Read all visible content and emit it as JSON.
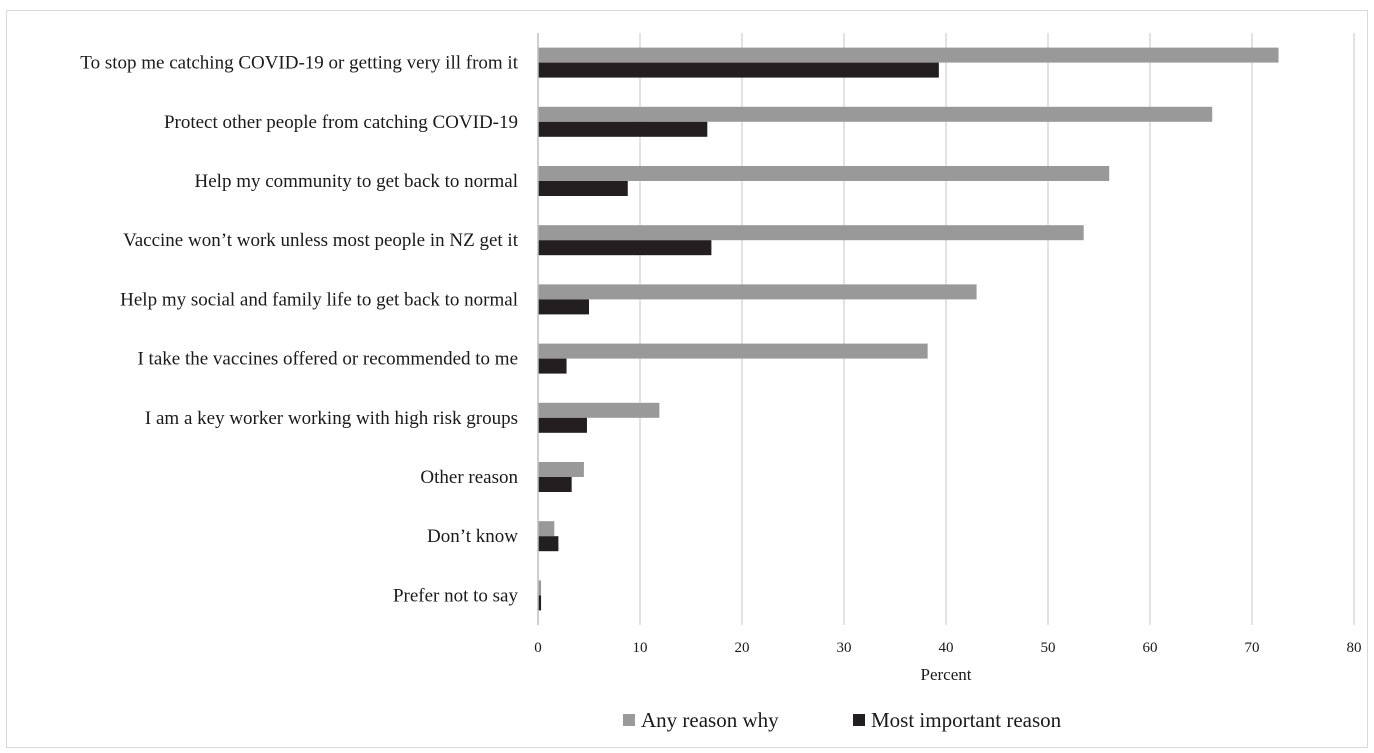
{
  "chart_data": {
    "type": "bar",
    "orientation": "horizontal",
    "categories": [
      "To stop me catching COVID-19 or getting very ill from it",
      "Protect other people from catching COVID-19",
      "Help my community to get back to normal",
      "Vaccine won’t work unless most people in NZ get it",
      "Help my social and family life to get back to normal",
      "I take the vaccines offered or recommended to me",
      "I am a key worker working with high risk groups",
      "Other reason",
      "Don’t know",
      "Prefer not to say"
    ],
    "series": [
      {
        "name": "Any reason why",
        "color": "#999999",
        "values": [
          72.6,
          66.1,
          56.0,
          53.5,
          43.0,
          38.2,
          11.9,
          4.5,
          1.6,
          0.3
        ]
      },
      {
        "name": "Most important reason",
        "color": "#231f20",
        "values": [
          39.3,
          16.6,
          8.8,
          17.0,
          5.0,
          2.8,
          4.8,
          3.3,
          2.0,
          0.3
        ]
      }
    ],
    "xlabel": "Percent",
    "ylabel": "",
    "xlim": [
      0,
      80
    ],
    "xticks": [
      "0",
      "10",
      "20",
      "30",
      "40",
      "50",
      "60",
      "70",
      "80"
    ],
    "grid": "vertical",
    "legend_position": "bottom"
  }
}
